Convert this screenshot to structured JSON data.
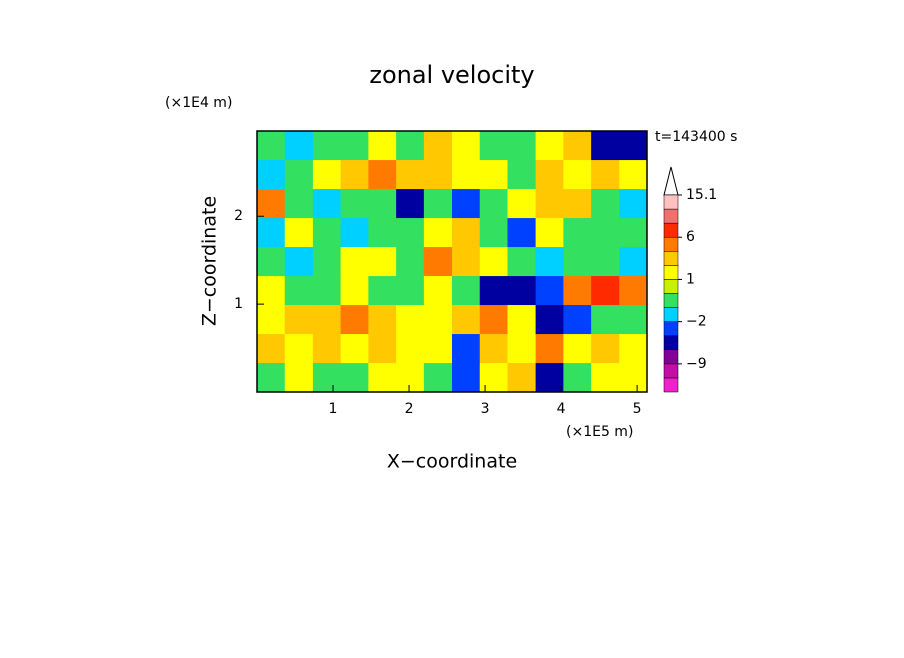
{
  "chart_data": {
    "type": "contour",
    "title": "zonal velocity",
    "x_label": "X−coordinate",
    "y_label": "Z−coordinate",
    "x_unit": "(×1E5 m)",
    "y_unit": "(×1E4 m)",
    "time_label": "t=143400 s",
    "xlim": [
      0,
      5.13
    ],
    "ylim": [
      0,
      2.97
    ],
    "xticks": [
      1,
      2,
      3,
      4,
      5
    ],
    "yticks": [
      1,
      2
    ],
    "x": [
      0.18,
      0.55,
      0.92,
      1.28,
      1.65,
      2.01,
      2.38,
      2.75,
      3.11,
      3.48,
      3.85,
      4.21,
      4.58,
      4.95
    ],
    "y": [
      0.17,
      0.5,
      0.83,
      1.16,
      1.49,
      1.82,
      2.15,
      2.48,
      2.81
    ],
    "z": [
      [
        -0.5,
        1.5,
        -0.5,
        -0.5,
        1.5,
        1.5,
        -0.5,
        -2.5,
        1.5,
        2.5,
        -4,
        -0.5,
        1.5,
        1.5
      ],
      [
        2.5,
        1.5,
        2.5,
        1.5,
        2.5,
        1.5,
        1.5,
        -2.5,
        2.5,
        1.5,
        4.5,
        1.5,
        2.5,
        1.5
      ],
      [
        1.5,
        2.5,
        2.5,
        4.5,
        2.5,
        1.5,
        1.5,
        2.5,
        4.5,
        1.5,
        -4,
        -2.5,
        -0.5,
        -0.5
      ],
      [
        1.5,
        -0.5,
        -0.5,
        1.5,
        -0.5,
        -0.5,
        1.5,
        -0.5,
        -4,
        -4,
        -2.5,
        4.5,
        7.5,
        4.5
      ],
      [
        -0.5,
        -1.5,
        -0.5,
        1.5,
        1.5,
        -0.5,
        4.5,
        2.5,
        1.5,
        -0.5,
        -1.5,
        -0.5,
        -0.5,
        -1.5
      ],
      [
        -1.5,
        1.5,
        -0.5,
        -1.5,
        -0.5,
        -0.5,
        1.5,
        2.5,
        -0.5,
        -2.5,
        1.5,
        -0.5,
        -0.5,
        -0.5
      ],
      [
        4.5,
        -0.5,
        -1.5,
        -0.5,
        -0.5,
        -4,
        -0.5,
        -2.5,
        -0.5,
        1.5,
        2.5,
        2.5,
        -0.5,
        -1.5
      ],
      [
        -1.5,
        -0.5,
        1.5,
        2.5,
        4.5,
        2.5,
        2.5,
        1.5,
        1.5,
        -0.5,
        2.5,
        1.5,
        2.5,
        1.5
      ],
      [
        -0.5,
        -1.5,
        -0.5,
        -0.5,
        1.5,
        -0.5,
        2.5,
        1.5,
        -0.5,
        -0.5,
        1.5,
        2.5,
        -4,
        -4
      ]
    ],
    "colorbar": {
      "levels": [
        -15,
        -12,
        -9,
        -6,
        -3,
        -2,
        -1,
        0,
        1,
        2,
        3,
        6,
        9,
        12,
        15.1
      ],
      "colors": [
        "#ee22cc",
        "#c010a8",
        "#800098",
        "#0000a0",
        "#0040ff",
        "#00d0ff",
        "#33e060",
        "#c8f000",
        "#ffff00",
        "#ffc800",
        "#ff7a00",
        "#ff2a00",
        "#f07070",
        "#ffc0c0"
      ],
      "ticks": [
        {
          "value": -9,
          "label": "−9"
        },
        {
          "value": -2,
          "label": "−2"
        },
        1,
        6,
        15.1
      ]
    }
  }
}
